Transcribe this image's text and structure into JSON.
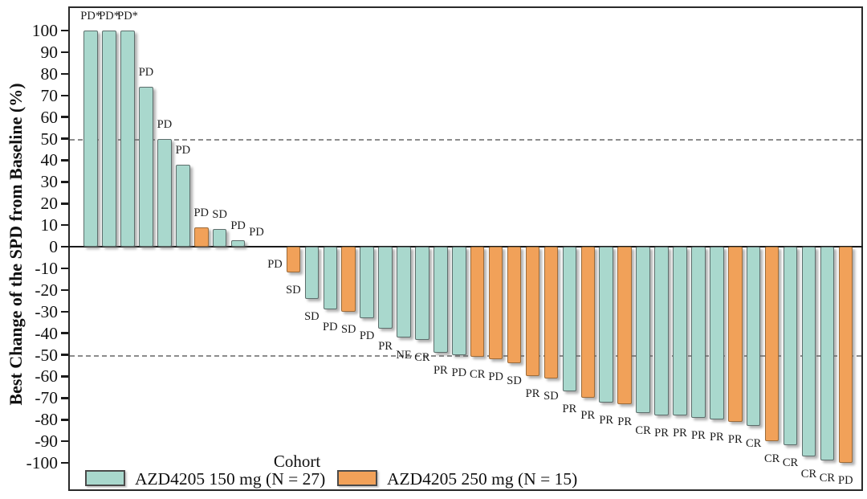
{
  "colors": {
    "cohort_150_fill": "#a9d8cd",
    "cohort_150_border": "#5d6e6c",
    "cohort_250_fill": "#f1a159",
    "cohort_250_border": "#9c6b39",
    "reference_line": "#8c8c8c",
    "axis": "#1a1a1a"
  },
  "chart_data": {
    "type": "bar",
    "subtype": "waterfall",
    "title": "",
    "xlabel": "",
    "ylabel": "Best Change of the SPD from Baseline (%)",
    "ylim": [
      -100,
      100
    ],
    "yticks": [
      100,
      90,
      80,
      70,
      60,
      50,
      40,
      30,
      20,
      10,
      0,
      -10,
      -20,
      -30,
      -40,
      -50,
      -60,
      -70,
      -80,
      -90,
      -100
    ],
    "reference_lines": [
      50,
      -50
    ],
    "grid": false,
    "legend": {
      "title": "Cohort",
      "position": "bottom-inside",
      "entries": [
        {
          "id": "150mg",
          "label": "AZD4205 150 mg (N = 27)",
          "n": 27,
          "color": "#a9d8cd"
        },
        {
          "id": "250mg",
          "label": "AZD4205 250 mg (N = 15)",
          "n": 15,
          "color": "#f1a159"
        }
      ]
    },
    "bars": [
      {
        "value": 100,
        "cohort": "150mg",
        "response": "PD*",
        "label_side": "above"
      },
      {
        "value": 100,
        "cohort": "150mg",
        "response": "PD*",
        "label_side": "above"
      },
      {
        "value": 100,
        "cohort": "150mg",
        "response": "PD*",
        "label_side": "above"
      },
      {
        "value": 74,
        "cohort": "150mg",
        "response": "PD",
        "label_side": "above"
      },
      {
        "value": 50,
        "cohort": "150mg",
        "response": "PD",
        "label_side": "above"
      },
      {
        "value": 38,
        "cohort": "150mg",
        "response": "PD",
        "label_side": "above"
      },
      {
        "value": 9,
        "cohort": "250mg",
        "response": "PD",
        "label_side": "above"
      },
      {
        "value": 8,
        "cohort": "150mg",
        "response": "SD",
        "label_side": "above"
      },
      {
        "value": 3,
        "cohort": "150mg",
        "response": "PD",
        "label_side": "above"
      },
      {
        "value": 0,
        "cohort": "250mg",
        "response": "PD",
        "label_side": "above"
      },
      {
        "value": 0,
        "cohort": "250mg",
        "response": "PD",
        "label_side": "below"
      },
      {
        "value": -12,
        "cohort": "250mg",
        "response": "SD",
        "label_side": "below"
      },
      {
        "value": -24,
        "cohort": "150mg",
        "response": "SD",
        "label_side": "below"
      },
      {
        "value": -29,
        "cohort": "150mg",
        "response": "PD",
        "label_side": "below"
      },
      {
        "value": -30,
        "cohort": "250mg",
        "response": "SD",
        "label_side": "below"
      },
      {
        "value": -33,
        "cohort": "150mg",
        "response": "PD",
        "label_side": "below"
      },
      {
        "value": -38,
        "cohort": "150mg",
        "response": "PR",
        "label_side": "below"
      },
      {
        "value": -42,
        "cohort": "150mg",
        "response": "NE",
        "label_side": "below"
      },
      {
        "value": -43,
        "cohort": "150mg",
        "response": "CR",
        "label_side": "below"
      },
      {
        "value": -49,
        "cohort": "150mg",
        "response": "PR",
        "label_side": "below"
      },
      {
        "value": -50,
        "cohort": "150mg",
        "response": "PD",
        "label_side": "below"
      },
      {
        "value": -51,
        "cohort": "250mg",
        "response": "CR",
        "label_side": "below"
      },
      {
        "value": -52,
        "cohort": "250mg",
        "response": "PD",
        "label_side": "below"
      },
      {
        "value": -54,
        "cohort": "250mg",
        "response": "SD",
        "label_side": "below"
      },
      {
        "value": -60,
        "cohort": "250mg",
        "response": "PR",
        "label_side": "below"
      },
      {
        "value": -61,
        "cohort": "250mg",
        "response": "SD",
        "label_side": "below"
      },
      {
        "value": -67,
        "cohort": "150mg",
        "response": "PR",
        "label_side": "below"
      },
      {
        "value": -70,
        "cohort": "250mg",
        "response": "PR",
        "label_side": "below"
      },
      {
        "value": -72,
        "cohort": "150mg",
        "response": "PR",
        "label_side": "below"
      },
      {
        "value": -73,
        "cohort": "250mg",
        "response": "PR",
        "label_side": "below"
      },
      {
        "value": -77,
        "cohort": "150mg",
        "response": "CR",
        "label_side": "below"
      },
      {
        "value": -78,
        "cohort": "150mg",
        "response": "PR",
        "label_side": "below"
      },
      {
        "value": -78,
        "cohort": "150mg",
        "response": "PR",
        "label_side": "below"
      },
      {
        "value": -79,
        "cohort": "150mg",
        "response": "PR",
        "label_side": "below"
      },
      {
        "value": -80,
        "cohort": "150mg",
        "response": "PR",
        "label_side": "below"
      },
      {
        "value": -81,
        "cohort": "250mg",
        "response": "PR",
        "label_side": "below"
      },
      {
        "value": -83,
        "cohort": "150mg",
        "response": "CR",
        "label_side": "below"
      },
      {
        "value": -90,
        "cohort": "250mg",
        "response": "CR",
        "label_side": "below"
      },
      {
        "value": -92,
        "cohort": "150mg",
        "response": "CR",
        "label_side": "below"
      },
      {
        "value": -97,
        "cohort": "150mg",
        "response": "CR",
        "label_side": "below"
      },
      {
        "value": -99,
        "cohort": "150mg",
        "response": "CR",
        "label_side": "below"
      },
      {
        "value": -100,
        "cohort": "250mg",
        "response": "PD",
        "label_side": "below"
      }
    ]
  }
}
